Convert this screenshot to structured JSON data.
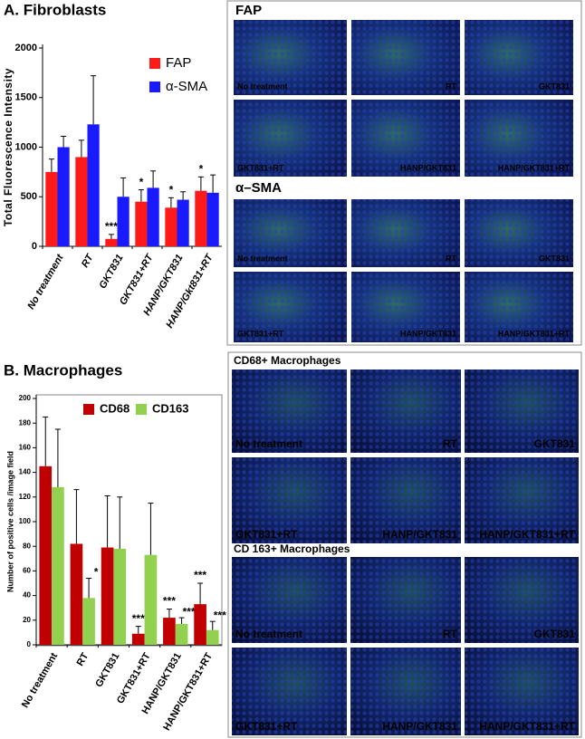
{
  "chart_data": [
    {
      "type": "bar",
      "title": "A. Fibroblasts",
      "ylabel": "Total Fluorescence Intensity",
      "categories": [
        "No treatment",
        "RT",
        "GKT831",
        "GKT831+RT",
        "HANP/GKT831",
        "HANP/Gkt831+RT"
      ],
      "series": [
        {
          "name": "FAP",
          "color": "#ff1a1a",
          "values": [
            750,
            900,
            75,
            450,
            390,
            560
          ],
          "errors": [
            130,
            170,
            45,
            120,
            100,
            140
          ],
          "significance": [
            null,
            null,
            "***",
            "*",
            "*",
            "*"
          ]
        },
        {
          "name": "α-SMA",
          "color": "#1a1aff",
          "values": [
            1000,
            1230,
            500,
            590,
            470,
            540
          ],
          "errors": [
            110,
            490,
            190,
            170,
            80,
            180
          ],
          "significance": [
            null,
            null,
            null,
            null,
            null,
            null
          ]
        }
      ],
      "ylim": [
        0,
        2000
      ],
      "yticks": [
        0,
        500,
        1000,
        1500,
        2000
      ],
      "grid": false,
      "legend": "upper right"
    },
    {
      "type": "bar",
      "title": "B. Macrophages",
      "ylabel": "Number of positive cells /image field",
      "categories": [
        "No treatment",
        "RT",
        "GKT831",
        "GKT831+RT",
        "HANP/GKT831",
        "HANP/GKT831+RT"
      ],
      "series": [
        {
          "name": "CD68",
          "color": "#c00000",
          "values": [
            145,
            82,
            79,
            9,
            22,
            33
          ],
          "errors": [
            40,
            44,
            42,
            6,
            7,
            17
          ],
          "significance": [
            null,
            null,
            null,
            "***",
            "***",
            "***"
          ]
        },
        {
          "name": "CD163",
          "color": "#92d050",
          "values": [
            128,
            38,
            78,
            73,
            17,
            12
          ],
          "errors": [
            47,
            16,
            42,
            42,
            5,
            7
          ],
          "significance": [
            null,
            "*",
            null,
            null,
            "***",
            "***"
          ]
        }
      ],
      "ylim": [
        0,
        200
      ],
      "yticks": [
        0,
        20,
        40,
        60,
        80,
        100,
        120,
        140,
        160,
        180,
        200
      ],
      "grid": false,
      "legend": "upper center"
    }
  ],
  "panels": [
    {
      "header": "FAP",
      "labels": [
        "No treatment",
        "RT",
        "GKT831",
        "GKT831+RT",
        "HANP/GKT831",
        "HANP/GKT831+RT"
      ]
    },
    {
      "header": "α–SMA",
      "labels": [
        "No treatment",
        "RT",
        "GKT831",
        "GKT831+RT",
        "HANP/GKT831",
        "HANP/GKT831+RT"
      ]
    },
    {
      "header": "CD68+ Macrophages",
      "labels": [
        "No treatment",
        "RT",
        "GKT831",
        "GKT831+RT",
        "HANP/GKT831",
        "HANP/GKT831+RT"
      ]
    },
    {
      "header": "CD 163+ Macrophages",
      "labels": [
        "No treatment",
        "RT",
        "GKT831",
        "GKT831+RT",
        "HANP/GKT831",
        "HANP/GKT831+RT"
      ]
    }
  ]
}
